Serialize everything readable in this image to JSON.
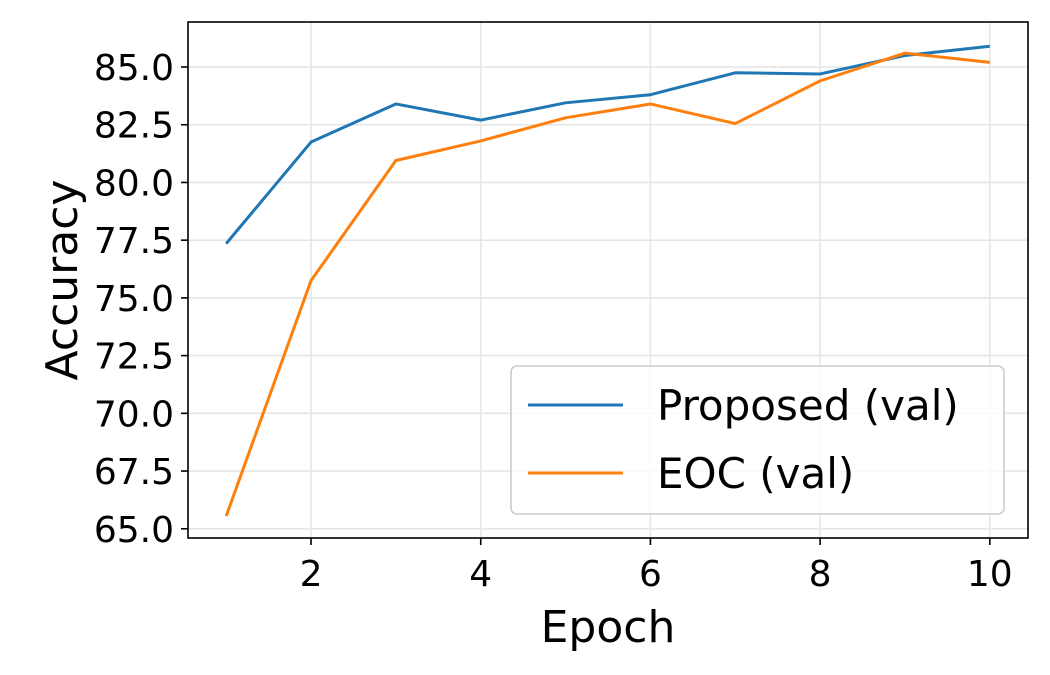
{
  "chart_data": {
    "type": "line",
    "title": "",
    "xlabel": "Epoch",
    "ylabel": "Accuracy",
    "x": [
      1,
      2,
      3,
      4,
      5,
      6,
      7,
      8,
      9,
      10
    ],
    "xlim": [
      0.55,
      10.45
    ],
    "ylim": [
      64.6,
      86.95
    ],
    "xticks": [
      2,
      4,
      6,
      8,
      10
    ],
    "xtick_labels": [
      "2",
      "4",
      "6",
      "8",
      "10"
    ],
    "yticks": [
      65.0,
      67.5,
      70.0,
      72.5,
      75.0,
      77.5,
      80.0,
      82.5,
      85.0
    ],
    "ytick_labels": [
      "65.0",
      "67.5",
      "70.0",
      "72.5",
      "75.0",
      "77.5",
      "80.0",
      "82.5",
      "85.0"
    ],
    "grid": true,
    "legend_position": "lower-right",
    "series": [
      {
        "name": "Proposed (val)",
        "color": "#1f77b4",
        "values": [
          77.35,
          81.75,
          83.4,
          82.7,
          83.45,
          83.8,
          84.75,
          84.7,
          85.5,
          85.9
        ]
      },
      {
        "name": "EOC (val)",
        "color": "#ff7f0e",
        "values": [
          65.55,
          75.75,
          80.95,
          81.8,
          82.8,
          83.4,
          82.55,
          84.4,
          85.6,
          85.2
        ]
      }
    ]
  }
}
